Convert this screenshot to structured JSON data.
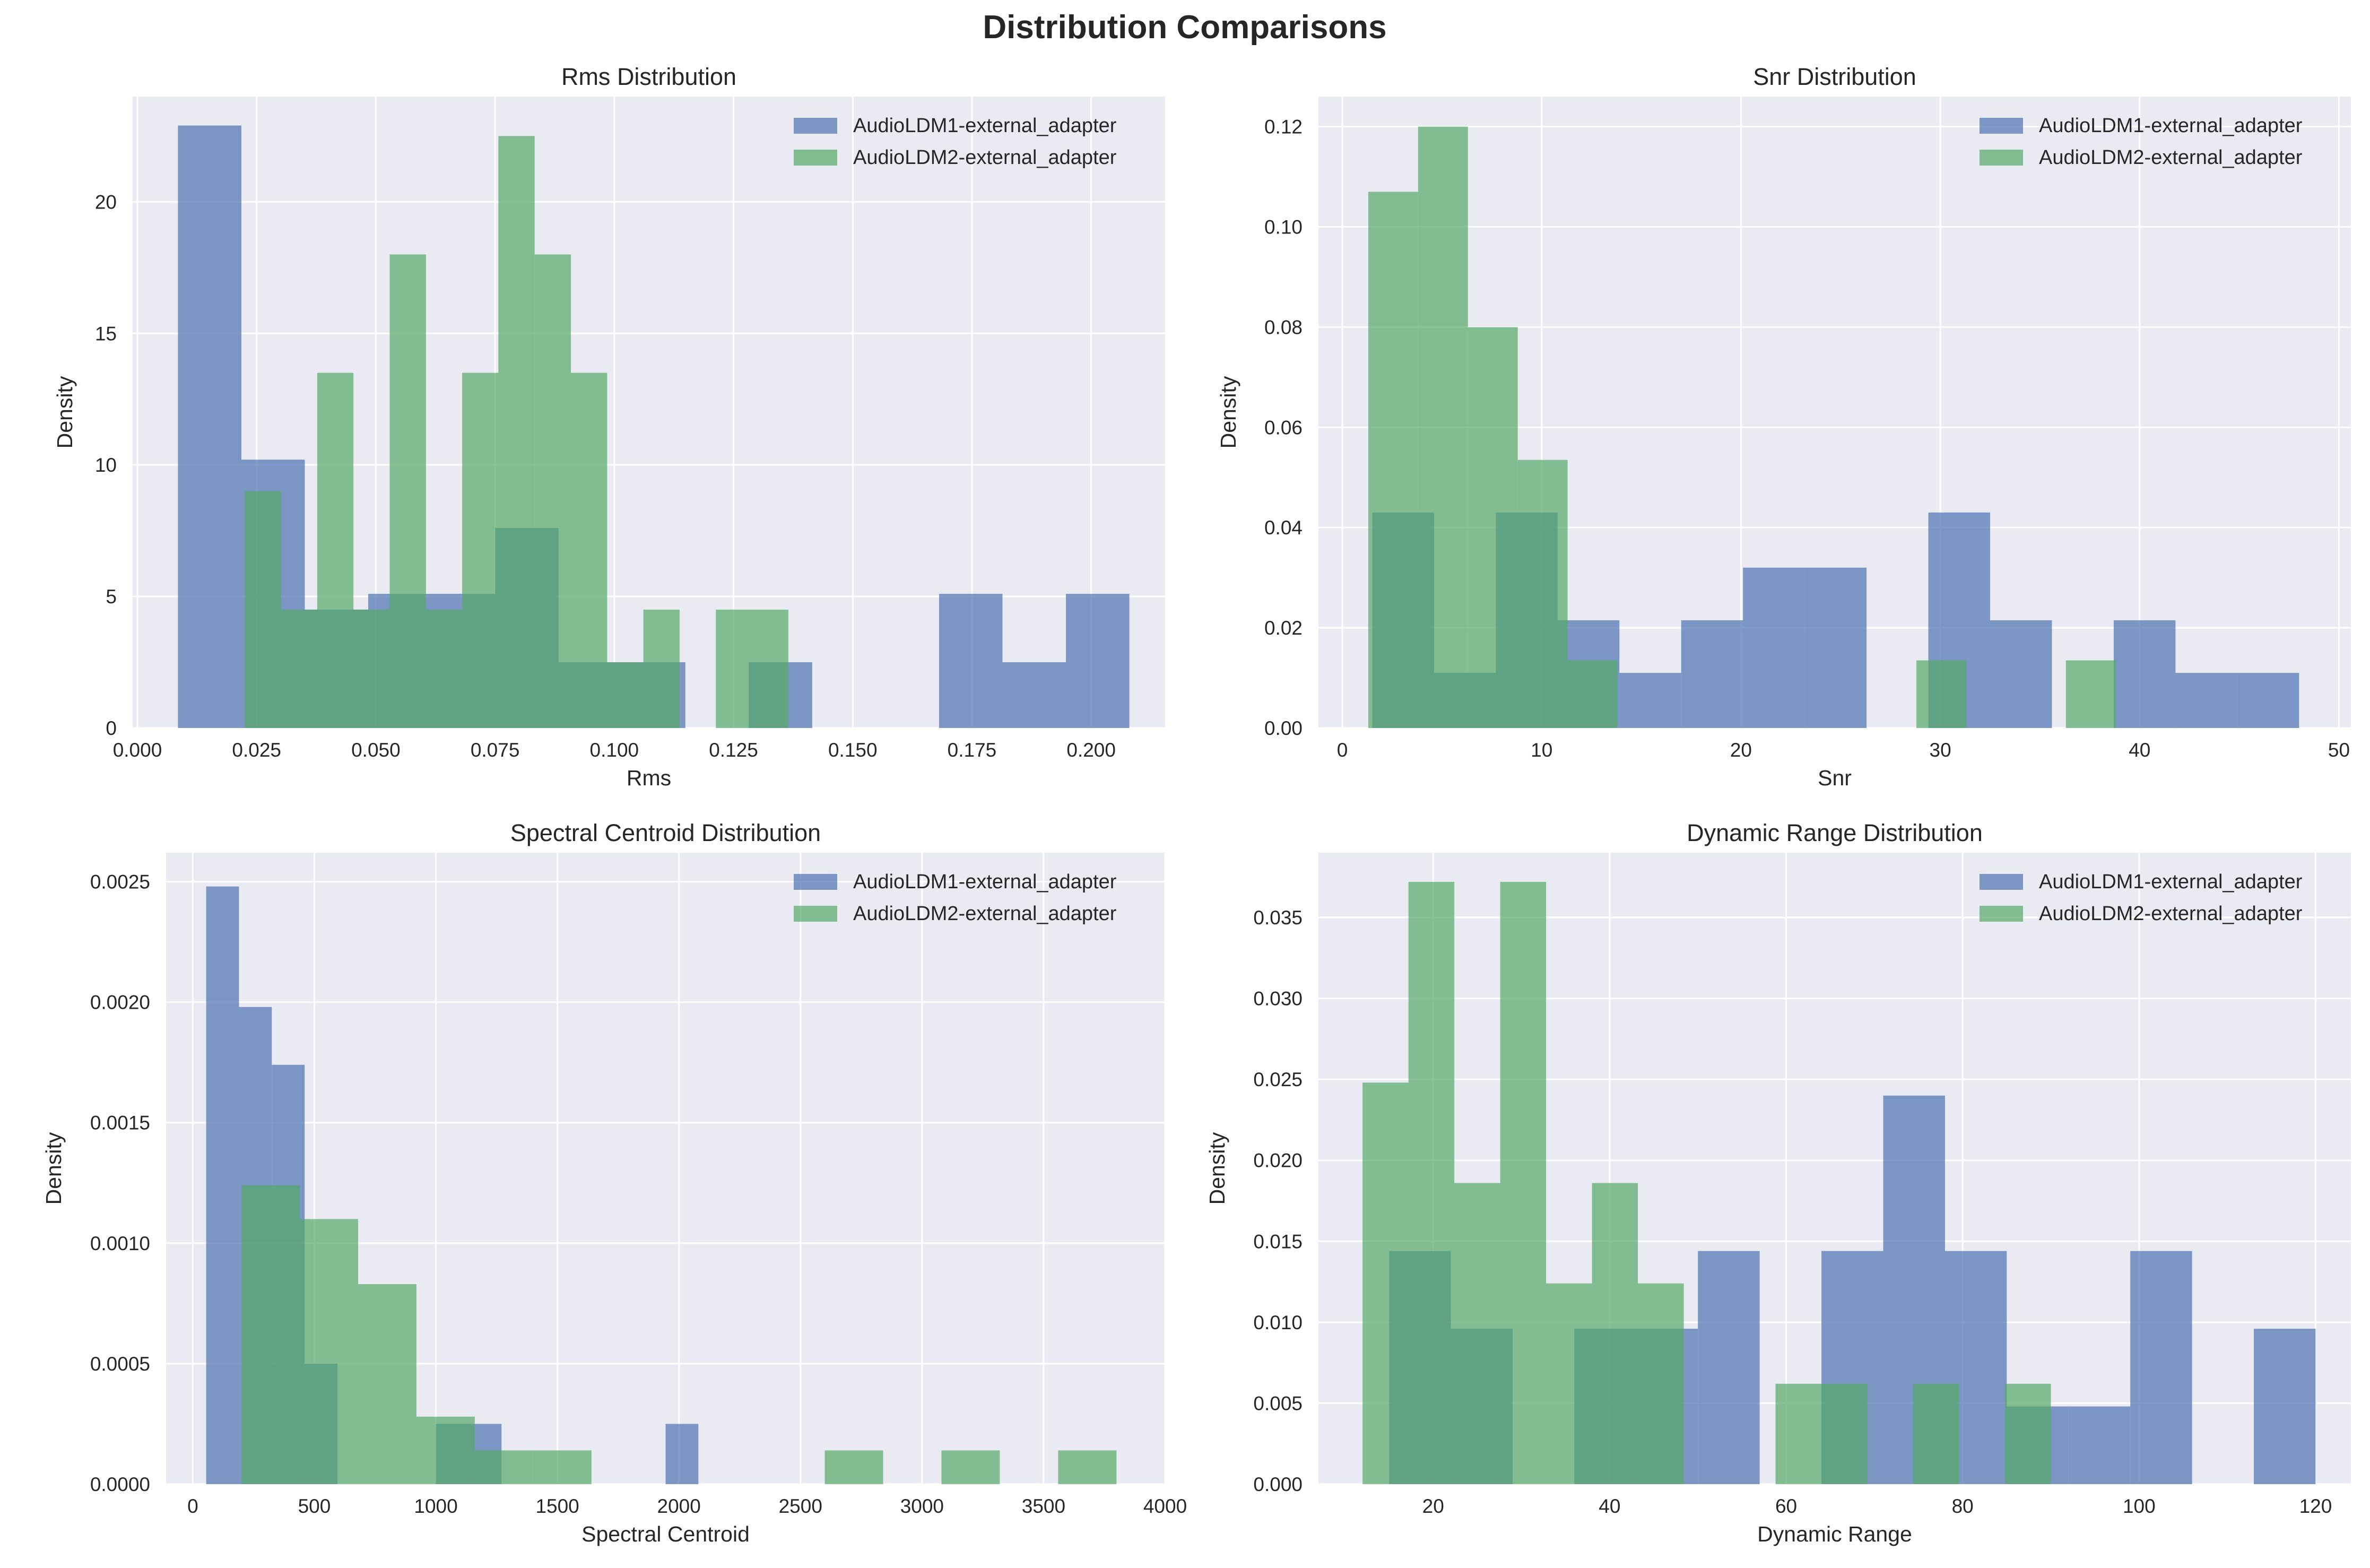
{
  "figure": {
    "title": "Distribution Comparisons"
  },
  "colors": {
    "series1": "#4c72b0",
    "series2": "#55a868",
    "plot_bg": "#eaeaf2",
    "grid": "#ffffff",
    "text": "#262626"
  },
  "chart_data": [
    {
      "type": "bar",
      "title": "Rms Distribution",
      "xlabel": "Rms",
      "ylabel": "Density",
      "xlim": [
        -0.001,
        0.2155
      ],
      "ylim": [
        0,
        24
      ],
      "xticks": [
        0.0,
        0.025,
        0.05,
        0.075,
        0.1,
        0.125,
        0.15,
        0.175,
        0.2
      ],
      "xtick_labels": [
        "0.000",
        "0.025",
        "0.050",
        "0.075",
        "0.100",
        "0.125",
        "0.150",
        "0.175",
        "0.200"
      ],
      "yticks": [
        0,
        5,
        10,
        15,
        20
      ],
      "ytick_labels": [
        "0",
        "5",
        "10",
        "15",
        "20"
      ],
      "grid": true,
      "legend": "upper right",
      "series": [
        {
          "name": "AudioLDM1-external_adapter",
          "bins": [
            [
              0.0085,
              0.0218,
              22.9
            ],
            [
              0.0218,
              0.0351,
              10.2
            ],
            [
              0.0351,
              0.0484,
              4.5
            ],
            [
              0.0484,
              0.0617,
              5.1
            ],
            [
              0.0617,
              0.075,
              5.1
            ],
            [
              0.075,
              0.0883,
              7.6
            ],
            [
              0.0883,
              0.1016,
              2.5
            ],
            [
              0.1016,
              0.1149,
              2.5
            ],
            [
              0.1282,
              0.1415,
              2.5
            ],
            [
              0.1681,
              0.1814,
              5.1
            ],
            [
              0.1814,
              0.1947,
              2.5
            ],
            [
              0.1947,
              0.208,
              5.1
            ]
          ]
        },
        {
          "name": "AudioLDM2-external_adapter",
          "bins": [
            [
              0.0225,
              0.0301,
              9.0
            ],
            [
              0.0301,
              0.0377,
              4.5
            ],
            [
              0.0377,
              0.0453,
              13.5
            ],
            [
              0.0453,
              0.0529,
              4.5
            ],
            [
              0.0529,
              0.0605,
              18.0
            ],
            [
              0.0605,
              0.0681,
              4.5
            ],
            [
              0.0681,
              0.0757,
              13.5
            ],
            [
              0.0757,
              0.0833,
              22.5
            ],
            [
              0.0833,
              0.0909,
              18.0
            ],
            [
              0.0909,
              0.0985,
              13.5
            ],
            [
              0.0985,
              0.1061,
              2.5
            ],
            [
              0.1061,
              0.1137,
              4.5
            ],
            [
              0.1213,
              0.1289,
              4.5
            ],
            [
              0.1289,
              0.1365,
              4.5
            ]
          ]
        }
      ]
    },
    {
      "type": "bar",
      "title": "Snr Distribution",
      "xlabel": "Snr",
      "ylabel": "Density",
      "xlim": [
        -1.2,
        50.6
      ],
      "ylim": [
        0,
        0.126
      ],
      "xticks": [
        0,
        10,
        20,
        30,
        40,
        50
      ],
      "xtick_labels": [
        "0",
        "10",
        "20",
        "30",
        "40",
        "50"
      ],
      "yticks": [
        0,
        0.02,
        0.04,
        0.06,
        0.08,
        0.1,
        0.12
      ],
      "ytick_labels": [
        "0.00",
        "0.02",
        "0.04",
        "0.06",
        "0.08",
        "0.10",
        "0.12"
      ],
      "grid": true,
      "legend": "upper right",
      "series": [
        {
          "name": "AudioLDM1-external_adapter",
          "bins": [
            [
              1.5,
              4.6,
              0.043
            ],
            [
              4.6,
              7.7,
              0.011
            ],
            [
              7.7,
              10.8,
              0.043
            ],
            [
              10.8,
              13.9,
              0.0215
            ],
            [
              13.9,
              17.0,
              0.011
            ],
            [
              17.0,
              20.1,
              0.0215
            ],
            [
              20.1,
              23.2,
              0.032
            ],
            [
              23.2,
              26.3,
              0.032
            ],
            [
              29.4,
              32.5,
              0.043
            ],
            [
              32.5,
              35.6,
              0.0215
            ],
            [
              38.7,
              41.8,
              0.0215
            ],
            [
              41.8,
              44.9,
              0.011
            ],
            [
              44.9,
              48.0,
              0.011
            ]
          ]
        },
        {
          "name": "AudioLDM2-external_adapter",
          "bins": [
            [
              1.3,
              3.8,
              0.107
            ],
            [
              3.8,
              6.3,
              0.12
            ],
            [
              6.3,
              8.8,
              0.08
            ],
            [
              8.8,
              11.3,
              0.0535
            ],
            [
              11.3,
              13.8,
              0.0135
            ],
            [
              28.8,
              31.3,
              0.0135
            ],
            [
              36.3,
              38.8,
              0.0135
            ]
          ]
        }
      ]
    },
    {
      "type": "bar",
      "title": "Spectral Centroid Distribution",
      "xlabel": "Spectral Centroid",
      "ylabel": "Density",
      "xlim": [
        -110,
        4000
      ],
      "ylim": [
        0,
        0.00262
      ],
      "xticks": [
        0,
        500,
        1000,
        1500,
        2000,
        2500,
        3000,
        3500,
        4000
      ],
      "xtick_labels": [
        "0",
        "500",
        "1000",
        "1500",
        "2000",
        "2500",
        "3000",
        "3500",
        "4000"
      ],
      "yticks": [
        0,
        0.0005,
        0.001,
        0.0015,
        0.002,
        0.0025
      ],
      "ytick_labels": [
        "0.0000",
        "0.0005",
        "0.0010",
        "0.0015",
        "0.0020",
        "0.0025"
      ],
      "grid": true,
      "legend": "upper right",
      "series": [
        {
          "name": "AudioLDM1-external_adapter",
          "bins": [
            [
              55,
              190,
              0.00248
            ],
            [
              190,
              325,
              0.00198
            ],
            [
              325,
              460,
              0.00174
            ],
            [
              460,
              595,
              0.0005
            ],
            [
              1000,
              1135,
              0.00025
            ],
            [
              1135,
              1270,
              0.00025
            ],
            [
              1945,
              2080,
              0.00025
            ]
          ]
        },
        {
          "name": "AudioLDM2-external_adapter",
          "bins": [
            [
              200,
              440,
              0.00124
            ],
            [
              440,
              680,
              0.0011
            ],
            [
              680,
              920,
              0.00083
            ],
            [
              920,
              1160,
              0.00028
            ],
            [
              1160,
              1400,
              0.00014
            ],
            [
              1400,
              1640,
              0.00014
            ],
            [
              2600,
              2840,
              0.00014
            ],
            [
              3080,
              3320,
              0.00014
            ],
            [
              3560,
              3800,
              0.00014
            ]
          ]
        }
      ]
    },
    {
      "type": "bar",
      "title": "Dynamic Range Distribution",
      "xlabel": "Dynamic Range",
      "ylabel": "Density",
      "xlim": [
        7,
        124
      ],
      "ylim": [
        0,
        0.039
      ],
      "xticks": [
        20,
        40,
        60,
        80,
        100,
        120
      ],
      "xtick_labels": [
        "20",
        "40",
        "60",
        "80",
        "100",
        "120"
      ],
      "yticks": [
        0,
        0.005,
        0.01,
        0.015,
        0.02,
        0.025,
        0.03,
        0.035
      ],
      "ytick_labels": [
        "0.000",
        "0.005",
        "0.010",
        "0.015",
        "0.020",
        "0.025",
        "0.030",
        "0.035"
      ],
      "grid": true,
      "legend": "upper right",
      "series": [
        {
          "name": "AudioLDM1-external_adapter",
          "bins": [
            [
              15,
              22,
              0.0144
            ],
            [
              22,
              29,
              0.0096
            ],
            [
              36,
              43,
              0.0096
            ],
            [
              43,
              50,
              0.0096
            ],
            [
              50,
              57,
              0.0144
            ],
            [
              64,
              71,
              0.0144
            ],
            [
              71,
              78,
              0.024
            ],
            [
              78,
              85,
              0.0144
            ],
            [
              85,
              92,
              0.0048
            ],
            [
              92,
              99,
              0.0048
            ],
            [
              99,
              106,
              0.0144
            ],
            [
              113,
              120,
              0.0096
            ]
          ]
        },
        {
          "name": "AudioLDM2-external_adapter",
          "bins": [
            [
              12,
              17.2,
              0.0248
            ],
            [
              17.2,
              22.4,
              0.0372
            ],
            [
              22.4,
              27.6,
              0.0186
            ],
            [
              27.6,
              32.8,
              0.0372
            ],
            [
              32.8,
              38.0,
              0.0124
            ],
            [
              38.0,
              43.2,
              0.0186
            ],
            [
              43.2,
              48.4,
              0.0124
            ],
            [
              58.8,
              64.0,
              0.0062
            ],
            [
              64.0,
              69.2,
              0.0062
            ],
            [
              74.4,
              79.6,
              0.0062
            ],
            [
              84.8,
              90.0,
              0.0062
            ]
          ]
        }
      ]
    }
  ]
}
